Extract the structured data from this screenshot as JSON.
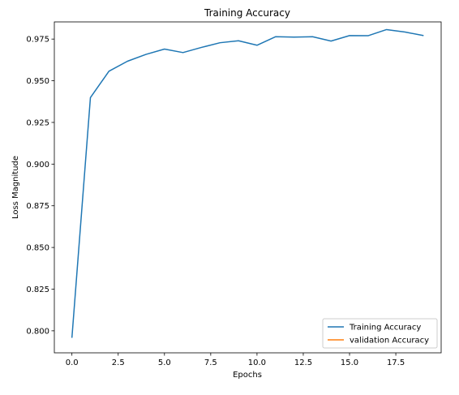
{
  "chart_data": {
    "type": "line",
    "title": "Training Accuracy",
    "xlabel": "Epochs",
    "ylabel": "Loss Magnitude",
    "xlim": [
      -0.95,
      19.95
    ],
    "ylim": [
      0.7868,
      0.9853
    ],
    "x_ticks": [
      0.0,
      2.5,
      5.0,
      7.5,
      10.0,
      12.5,
      15.0,
      17.5
    ],
    "x_tick_labels": [
      "0.0",
      "2.5",
      "5.0",
      "7.5",
      "10.0",
      "12.5",
      "15.0",
      "17.5"
    ],
    "y_ticks": [
      0.8,
      0.825,
      0.85,
      0.875,
      0.9,
      0.925,
      0.95,
      0.975
    ],
    "y_tick_labels": [
      "0.800",
      "0.825",
      "0.850",
      "0.875",
      "0.900",
      "0.925",
      "0.950",
      "0.975"
    ],
    "grid": false,
    "legend_position": "lower-right",
    "series": [
      {
        "name": "Training Accuracy",
        "color": "#1f77b4",
        "x": [
          0,
          1,
          2,
          3,
          4,
          5,
          6,
          7,
          8,
          9,
          10,
          11,
          12,
          13,
          14,
          15,
          16,
          17,
          18,
          19
        ],
        "values": [
          0.7958,
          0.9399,
          0.9557,
          0.9617,
          0.9658,
          0.969,
          0.9669,
          0.97,
          0.9728,
          0.974,
          0.9713,
          0.9764,
          0.9762,
          0.9764,
          0.9738,
          0.9771,
          0.977,
          0.9807,
          0.9792,
          0.9771
        ]
      },
      {
        "name": "validation Accuracy",
        "color": "#ff7f0e",
        "x": [],
        "values": []
      }
    ]
  }
}
